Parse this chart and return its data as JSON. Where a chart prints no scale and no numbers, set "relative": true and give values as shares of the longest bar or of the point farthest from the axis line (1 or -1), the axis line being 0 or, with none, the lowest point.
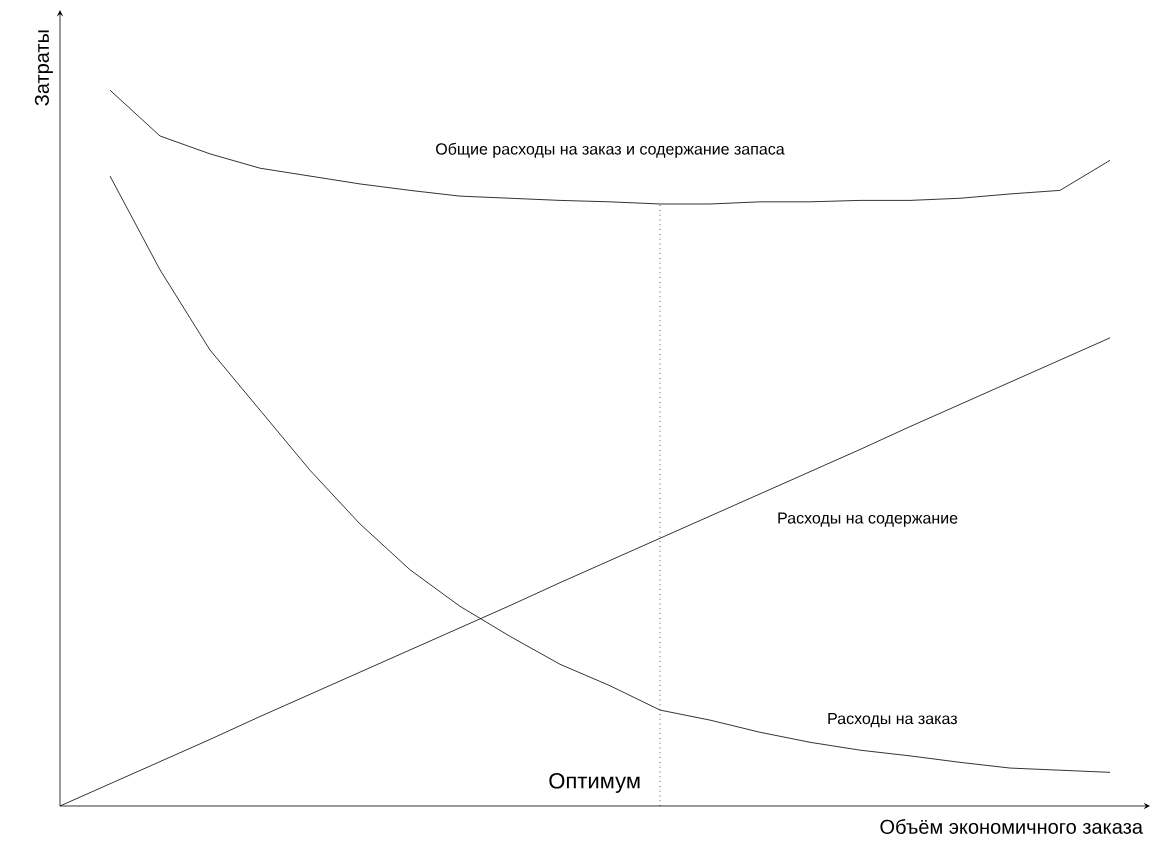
{
  "chart_data": {
    "type": "line",
    "relative": true,
    "legend": false,
    "marker": "none",
    "xlabel": "Объём экономичного заказа",
    "ylabel": "Затраты",
    "categories": [
      null,
      null,
      null,
      null,
      null,
      null,
      null,
      null,
      null,
      null,
      null,
      null,
      null,
      null,
      null,
      null,
      null,
      null,
      null,
      null,
      null,
      null
    ],
    "series": [
      {
        "name": "Общие расходы на заказ и содержание запаса",
        "color": "#000000",
        "values": [
          null,
          1,
          0.936,
          0.911,
          0.891,
          0.88,
          0.869,
          0.86,
          0.852,
          0.849,
          0.846,
          0.844,
          0.841,
          0.841,
          0.844,
          0.844,
          0.846,
          0.846,
          0.849,
          0.855,
          0.86,
          0.902
        ]
      },
      {
        "name": "Расходы на содержание",
        "color": "#000000",
        "values": [
          0,
          0.031,
          0.062,
          0.093,
          0.125,
          0.156,
          0.187,
          0.218,
          0.249,
          0.28,
          0.312,
          0.343,
          0.374,
          0.405,
          0.436,
          0.467,
          0.498,
          0.53,
          0.561,
          0.592,
          0.623,
          0.654
        ]
      },
      {
        "name": "Расходы на заказ",
        "color": "#000000",
        "values": [
          null,
          0.88,
          0.749,
          0.637,
          0.553,
          0.469,
          0.394,
          0.33,
          0.279,
          0.237,
          0.198,
          0.168,
          0.134,
          0.12,
          0.103,
          0.089,
          0.078,
          0.07,
          0.061,
          0.053,
          0.05,
          0.047
        ]
      }
    ],
    "annotations": [
      "Оптимум"
    ]
  }
}
